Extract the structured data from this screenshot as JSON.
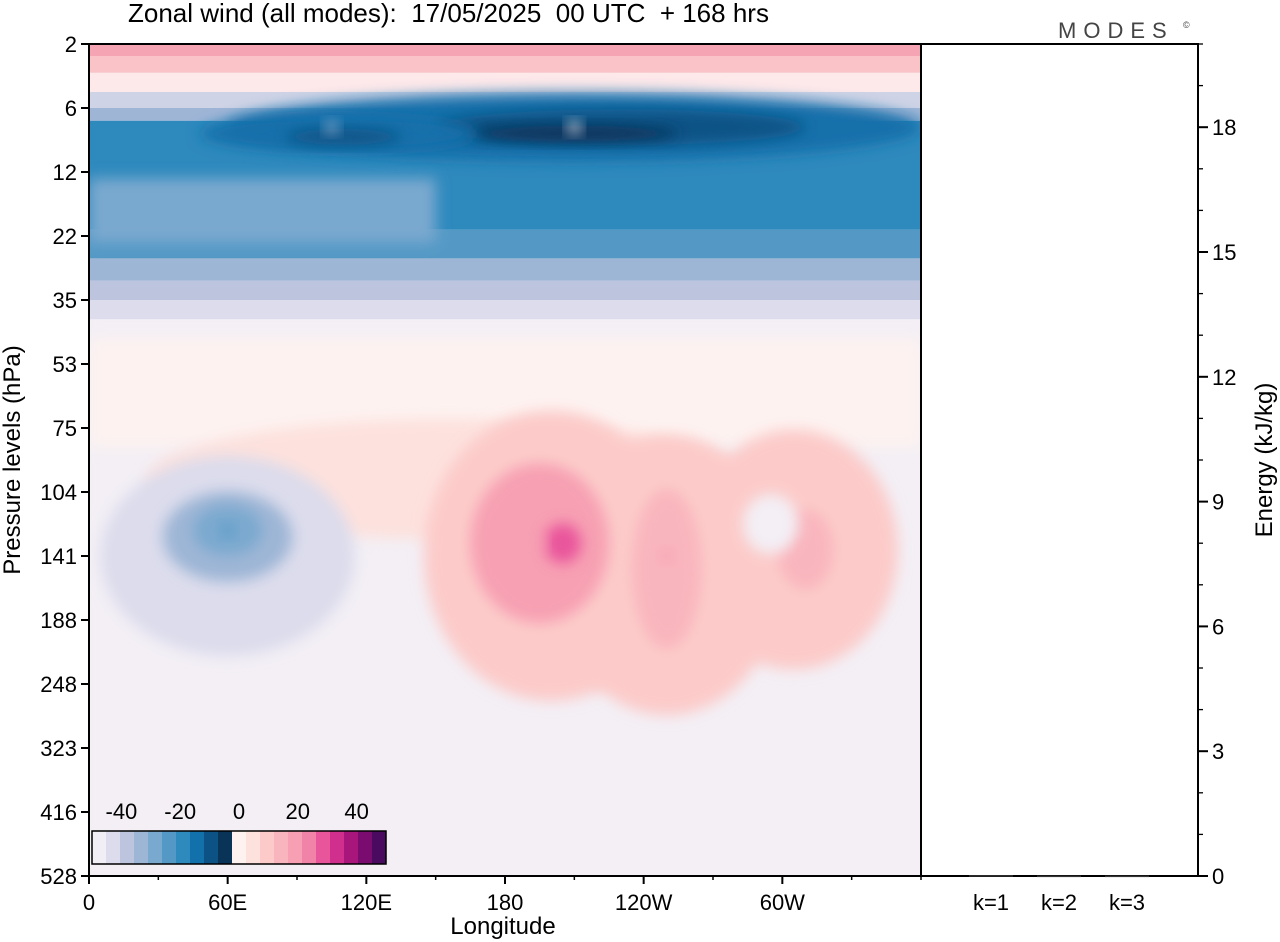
{
  "title": "Zonal wind (all modes):  17/05/2025  00 UTC  + 168 hrs",
  "brand": "MODES",
  "brand_mark": "©",
  "colors": {
    "negative": [
      "#0a3358",
      "#0c5285",
      "#1270aa",
      "#2e89bd",
      "#5499c6",
      "#7aa9cf",
      "#9eb6d6",
      "#bdc5de",
      "#dcdcec",
      "#f1eef5"
    ],
    "positive": [
      "#fdf2f0",
      "#fde1dd",
      "#fccbc9",
      "#f9b5bd",
      "#f7a0b3",
      "#f283a8",
      "#e9559b",
      "#d12f8e",
      "#a8157b",
      "#7a0c6f",
      "#4a0a60"
    ]
  },
  "chart_data": [
    {
      "type": "heatmap",
      "xlabel": "Longitude",
      "ylabel": "Pressure levels (hPa)",
      "x_ticks": [
        "0",
        "60E",
        "120E",
        "180",
        "120W",
        "60W"
      ],
      "x_tick_values": [
        0,
        60,
        120,
        180,
        240,
        300
      ],
      "xlim": [
        0,
        360
      ],
      "y_ticks": [
        "2",
        "6",
        "12",
        "22",
        "35",
        "53",
        "75",
        "104",
        "141",
        "188",
        "248",
        "323",
        "416",
        "528"
      ],
      "colorbar": {
        "labels": [
          "-40",
          "-20",
          "0",
          "20",
          "40"
        ],
        "range": [
          -50,
          50
        ],
        "step": 5
      },
      "features": [
        {
          "label": "",
          "lon": 210,
          "level_index": 1.3,
          "value": -47
        },
        {
          "label": "",
          "lon": 105,
          "level_index": 1.3,
          "value": -32
        },
        {
          "label": "",
          "lon": 60,
          "level_index": 7.6,
          "value": -22
        },
        {
          "label": "",
          "lon": 195,
          "level_index": 7.8,
          "value": 22
        },
        {
          "label": "",
          "lon": 250,
          "level_index": 8.0,
          "value": 20
        },
        {
          "label": "",
          "lon": 310,
          "level_index": 7.9,
          "value": 18
        }
      ]
    },
    {
      "type": "bar",
      "ylabel": "Energy (kJ/kg)",
      "categories": [
        "k=1",
        "k=2",
        "k=3"
      ],
      "values": [
        0.02,
        0.01,
        0.01
      ],
      "ylim": [
        0,
        20
      ],
      "y_ticks": [
        "0",
        "3",
        "6",
        "9",
        "12",
        "15",
        "18"
      ],
      "y_tick_values": [
        0,
        3,
        6,
        9,
        12,
        15,
        18
      ]
    }
  ]
}
